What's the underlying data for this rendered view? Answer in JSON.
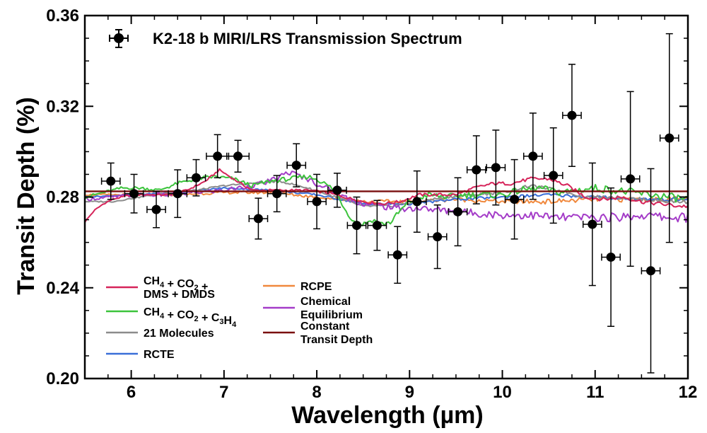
{
  "chart_data": {
    "type": "line",
    "title": "K2-18 b MIRI/LRS Transmission Spectrum",
    "xlabel": "Wavelength (µm)",
    "ylabel": "Transit Depth (%)",
    "xlim": [
      5.5,
      12
    ],
    "ylim": [
      0.2,
      0.36
    ],
    "xticks": [
      6,
      7,
      8,
      9,
      10,
      11,
      12
    ],
    "yticks": [
      0.2,
      0.24,
      0.28,
      0.32,
      0.36
    ],
    "ytick_labels": [
      "0.20",
      "0.24",
      "0.28",
      "0.32",
      "0.36"
    ],
    "grid": false,
    "legend_position": "bottom-left",
    "observed": {
      "name": "K2-18 b MIRI/LRS Transmission Spectrum",
      "color": "#000000",
      "points": [
        {
          "x": 5.78,
          "y": 0.287,
          "xerr": 0.1,
          "yerr": 0.008
        },
        {
          "x": 6.03,
          "y": 0.2815,
          "xerr": 0.1,
          "yerr": 0.0085
        },
        {
          "x": 6.27,
          "y": 0.2745,
          "xerr": 0.1,
          "yerr": 0.008
        },
        {
          "x": 6.5,
          "y": 0.2815,
          "xerr": 0.1,
          "yerr": 0.0105
        },
        {
          "x": 6.7,
          "y": 0.2885,
          "xerr": 0.1,
          "yerr": 0.008
        },
        {
          "x": 6.93,
          "y": 0.298,
          "xerr": 0.12,
          "yerr": 0.0095
        },
        {
          "x": 7.15,
          "y": 0.298,
          "xerr": 0.12,
          "yerr": 0.007
        },
        {
          "x": 7.37,
          "y": 0.2705,
          "xerr": 0.1,
          "yerr": 0.009
        },
        {
          "x": 7.57,
          "y": 0.2815,
          "xerr": 0.1,
          "yerr": 0.008
        },
        {
          "x": 7.78,
          "y": 0.294,
          "xerr": 0.1,
          "yerr": 0.0095
        },
        {
          "x": 8.0,
          "y": 0.278,
          "xerr": 0.1,
          "yerr": 0.012
        },
        {
          "x": 8.22,
          "y": 0.283,
          "xerr": 0.1,
          "yerr": 0.0075
        },
        {
          "x": 8.43,
          "y": 0.2675,
          "xerr": 0.1,
          "yerr": 0.0125
        },
        {
          "x": 8.65,
          "y": 0.2675,
          "xerr": 0.1,
          "yerr": 0.011
        },
        {
          "x": 8.87,
          "y": 0.2545,
          "xerr": 0.1,
          "yerr": 0.0125
        },
        {
          "x": 9.08,
          "y": 0.278,
          "xerr": 0.1,
          "yerr": 0.0135
        },
        {
          "x": 9.3,
          "y": 0.2625,
          "xerr": 0.1,
          "yerr": 0.014
        },
        {
          "x": 9.52,
          "y": 0.2735,
          "xerr": 0.1,
          "yerr": 0.015
        },
        {
          "x": 9.72,
          "y": 0.292,
          "xerr": 0.1,
          "yerr": 0.015
        },
        {
          "x": 9.93,
          "y": 0.293,
          "xerr": 0.1,
          "yerr": 0.0165
        },
        {
          "x": 10.13,
          "y": 0.279,
          "xerr": 0.1,
          "yerr": 0.0175
        },
        {
          "x": 10.33,
          "y": 0.298,
          "xerr": 0.1,
          "yerr": 0.019
        },
        {
          "x": 10.55,
          "y": 0.2895,
          "xerr": 0.1,
          "yerr": 0.021
        },
        {
          "x": 10.75,
          "y": 0.316,
          "xerr": 0.1,
          "yerr": 0.0225
        },
        {
          "x": 10.97,
          "y": 0.268,
          "xerr": 0.1,
          "yerr": 0.027
        },
        {
          "x": 11.17,
          "y": 0.2535,
          "xerr": 0.1,
          "yerr": 0.0305
        },
        {
          "x": 11.38,
          "y": 0.288,
          "xerr": 0.1,
          "yerr": 0.0385
        },
        {
          "x": 11.6,
          "y": 0.2475,
          "xerr": 0.1,
          "yerr": 0.045
        },
        {
          "x": 11.8,
          "y": 0.306,
          "xerr": 0.1,
          "yerr": 0.046
        }
      ]
    },
    "series": [
      {
        "name_parts": [
          [
            "CH",
            ""
          ],
          [
            "4",
            "sub"
          ],
          [
            " + CO",
            ""
          ],
          [
            "2",
            "sub"
          ],
          [
            " +",
            ""
          ]
        ],
        "name_line2": "DMS + DMDS",
        "color": "#d6245a",
        "x": [
          5.5,
          5.6,
          5.7,
          5.8,
          5.9,
          6.0,
          6.2,
          6.4,
          6.6,
          6.8,
          6.95,
          7.1,
          7.3,
          7.5,
          7.7,
          7.9,
          8.1,
          8.3,
          8.5,
          8.7,
          8.9,
          9.1,
          9.3,
          9.5,
          9.7,
          9.9,
          10.1,
          10.3,
          10.5,
          10.7,
          10.9,
          11.1,
          11.3,
          11.5,
          11.7,
          11.9,
          12.0
        ],
        "y": [
          0.269,
          0.274,
          0.277,
          0.279,
          0.28,
          0.281,
          0.281,
          0.281,
          0.283,
          0.287,
          0.292,
          0.288,
          0.283,
          0.283,
          0.283,
          0.283,
          0.282,
          0.28,
          0.278,
          0.277,
          0.278,
          0.281,
          0.281,
          0.281,
          0.284,
          0.286,
          0.286,
          0.288,
          0.288,
          0.285,
          0.28,
          0.279,
          0.28,
          0.278,
          0.277,
          0.276,
          0.276
        ]
      },
      {
        "name_parts": [
          [
            "CH",
            ""
          ],
          [
            "4",
            "sub"
          ],
          [
            " + CO",
            ""
          ],
          [
            "2",
            "sub"
          ],
          [
            " + C",
            ""
          ],
          [
            "3",
            "sub"
          ],
          [
            "H",
            ""
          ],
          [
            "4",
            "sub"
          ]
        ],
        "color": "#3cc33c",
        "x": [
          5.5,
          5.7,
          5.9,
          6.1,
          6.3,
          6.5,
          6.7,
          6.9,
          7.1,
          7.3,
          7.5,
          7.7,
          7.9,
          8.0,
          8.2,
          8.3,
          8.4,
          8.5,
          8.6,
          8.7,
          8.8,
          8.9,
          9.0,
          9.2,
          9.4,
          9.6,
          9.8,
          10.0,
          10.2,
          10.4,
          10.6,
          10.8,
          11.0,
          11.2,
          11.4,
          11.6,
          11.8,
          12.0
        ],
        "y": [
          0.28,
          0.282,
          0.284,
          0.284,
          0.283,
          0.286,
          0.288,
          0.289,
          0.288,
          0.285,
          0.287,
          0.288,
          0.289,
          0.288,
          0.283,
          0.275,
          0.269,
          0.268,
          0.27,
          0.268,
          0.269,
          0.274,
          0.278,
          0.281,
          0.28,
          0.281,
          0.281,
          0.281,
          0.283,
          0.284,
          0.282,
          0.283,
          0.284,
          0.283,
          0.282,
          0.281,
          0.28,
          0.279
        ]
      },
      {
        "name_parts": [
          [
            "21 Molecules",
            ""
          ]
        ],
        "color": "#8c8c8c",
        "x": [
          5.5,
          5.8,
          6.1,
          6.4,
          6.7,
          7.0,
          7.3,
          7.6,
          7.9,
          8.2,
          8.5,
          8.8,
          9.1,
          9.4,
          9.7,
          10.0,
          10.3,
          10.6,
          10.9,
          11.2,
          11.5,
          11.8,
          12.0
        ],
        "y": [
          0.278,
          0.278,
          0.28,
          0.282,
          0.283,
          0.285,
          0.286,
          0.287,
          0.284,
          0.28,
          0.276,
          0.276,
          0.278,
          0.28,
          0.281,
          0.282,
          0.285,
          0.283,
          0.28,
          0.28,
          0.279,
          0.278,
          0.278
        ]
      },
      {
        "name_parts": [
          [
            "RCTE",
            ""
          ]
        ],
        "color": "#3a6fd8",
        "x": [
          5.5,
          6.0,
          6.5,
          7.0,
          7.5,
          8.0,
          8.5,
          9.0,
          9.5,
          10.0,
          10.5,
          11.0,
          11.5,
          12.0
        ],
        "y": [
          0.28,
          0.281,
          0.282,
          0.284,
          0.283,
          0.281,
          0.277,
          0.277,
          0.279,
          0.28,
          0.281,
          0.28,
          0.279,
          0.279
        ]
      },
      {
        "name_parts": [
          [
            "RCPE",
            ""
          ]
        ],
        "color": "#f0883c",
        "x": [
          5.5,
          6.0,
          6.5,
          7.0,
          7.5,
          8.0,
          8.5,
          9.0,
          9.5,
          10.0,
          10.5,
          11.0,
          11.5,
          12.0
        ],
        "y": [
          0.281,
          0.281,
          0.281,
          0.282,
          0.282,
          0.28,
          0.278,
          0.278,
          0.279,
          0.278,
          0.278,
          0.279,
          0.279,
          0.279
        ]
      },
      {
        "name_parts": [
          [
            "Chemical",
            ""
          ]
        ],
        "name_line2": "Equilibrium",
        "color": "#a43cc8",
        "x": [
          5.5,
          5.8,
          6.1,
          6.4,
          6.7,
          7.0,
          7.3,
          7.5,
          7.7,
          7.9,
          8.1,
          8.3,
          8.5,
          8.7,
          8.9,
          9.1,
          9.4,
          9.7,
          10.0,
          10.3,
          10.6,
          10.9,
          11.2,
          11.5,
          11.8,
          12.0
        ],
        "y": [
          0.279,
          0.28,
          0.281,
          0.281,
          0.282,
          0.283,
          0.285,
          0.287,
          0.291,
          0.288,
          0.284,
          0.28,
          0.277,
          0.276,
          0.275,
          0.275,
          0.274,
          0.273,
          0.272,
          0.272,
          0.271,
          0.271,
          0.271,
          0.272,
          0.271,
          0.271
        ]
      },
      {
        "name_parts": [
          [
            "Constant",
            ""
          ]
        ],
        "name_line2": "Transit Depth",
        "color": "#7a0f0f",
        "x": [
          5.5,
          12.0
        ],
        "y": [
          0.2825,
          0.2825
        ]
      }
    ]
  },
  "legend_layout_order": [
    0,
    4,
    1,
    5,
    2,
    6,
    3
  ]
}
